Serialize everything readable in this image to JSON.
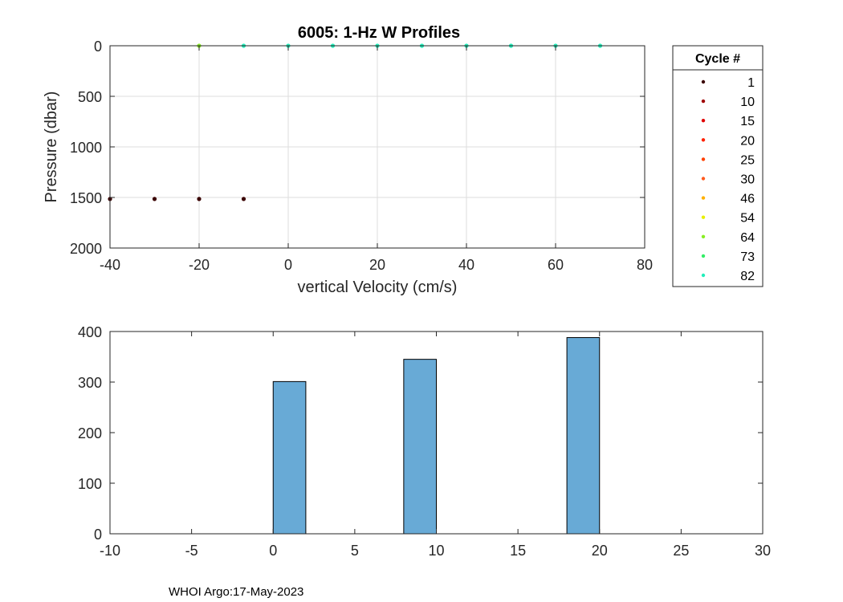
{
  "footer": "WHOI Argo:17-May-2023",
  "chart_data": [
    {
      "type": "scatter",
      "title": "6005: 1-Hz W Profiles",
      "xlabel": "vertical Velocity (cm/s)",
      "ylabel": "Pressure (dbar)",
      "xlim": [
        -40,
        80
      ],
      "ylim": [
        0,
        2000
      ],
      "y_reversed": true,
      "xticks": [
        -40,
        -20,
        0,
        20,
        40,
        60,
        80
      ],
      "yticks": [
        0,
        500,
        1000,
        1500,
        2000
      ],
      "grid": true,
      "legend": {
        "title": "Cycle #",
        "placement": "outside-right",
        "entries": [
          {
            "label": "1",
            "color": "#3a0000"
          },
          {
            "label": "10",
            "color": "#a00000"
          },
          {
            "label": "15",
            "color": "#e00000"
          },
          {
            "label": "20",
            "color": "#ff2000"
          },
          {
            "label": "25",
            "color": "#ff4000"
          },
          {
            "label": "30",
            "color": "#ff5a1e"
          },
          {
            "label": "46",
            "color": "#ffb000"
          },
          {
            "label": "54",
            "color": "#e8f000"
          },
          {
            "label": "64",
            "color": "#88ee22"
          },
          {
            "label": "73",
            "color": "#33ee66"
          },
          {
            "label": "82",
            "color": "#22eebb"
          }
        ]
      },
      "points": [
        {
          "x": -40,
          "y": 1515,
          "color": "#3a0000"
        },
        {
          "x": -30,
          "y": 1515,
          "color": "#3a0000"
        },
        {
          "x": -20,
          "y": 1515,
          "color": "#3a0000"
        },
        {
          "x": -10,
          "y": 1515,
          "color": "#3a0000"
        },
        {
          "x": -20,
          "y": 0,
          "color": "#88ee22"
        },
        {
          "x": -10,
          "y": 0,
          "color": "#22eebb"
        },
        {
          "x": 0,
          "y": 0,
          "color": "#22eebb"
        },
        {
          "x": 10,
          "y": 0,
          "color": "#22eebb"
        },
        {
          "x": 20,
          "y": 0,
          "color": "#22eebb"
        },
        {
          "x": 30,
          "y": 0,
          "color": "#22eebb"
        },
        {
          "x": 40,
          "y": 0,
          "color": "#22eebb"
        },
        {
          "x": 50,
          "y": 0,
          "color": "#22eebb"
        },
        {
          "x": 60,
          "y": 0,
          "color": "#22eebb"
        },
        {
          "x": 70,
          "y": 0,
          "color": "#22eebb"
        }
      ]
    },
    {
      "type": "bar",
      "title": "",
      "xlabel": "",
      "ylabel": "",
      "xlim": [
        -10,
        30
      ],
      "ylim": [
        0,
        400
      ],
      "xticks": [
        -10,
        -5,
        0,
        5,
        10,
        15,
        20,
        25,
        30
      ],
      "yticks": [
        0,
        100,
        200,
        300,
        400
      ],
      "grid": false,
      "bar_color": "#68aad6",
      "bins": [
        {
          "x0": 0,
          "x1": 2,
          "value": 301
        },
        {
          "x0": 8,
          "x1": 10,
          "value": 345
        },
        {
          "x0": 18,
          "x1": 20,
          "value": 388
        }
      ]
    }
  ]
}
